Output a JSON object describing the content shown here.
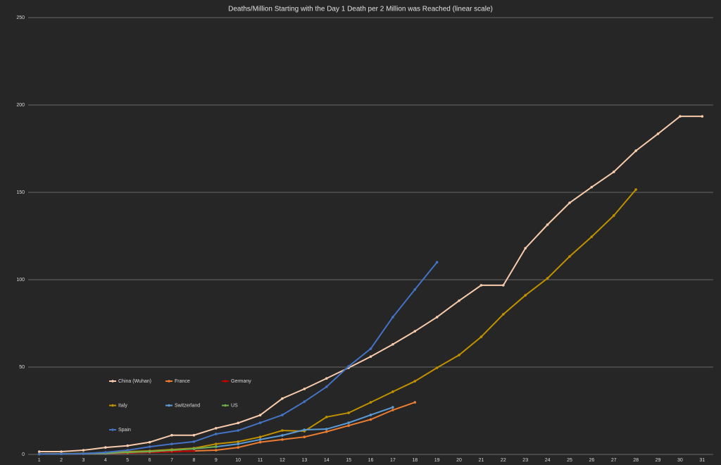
{
  "chart_data": {
    "type": "line",
    "title": "Deaths/Million Starting with the Day 1 Death per 2 Million was Reached (linear scale)",
    "categories": [
      "1",
      "2",
      "3",
      "4",
      "5",
      "6",
      "7",
      "8",
      "9",
      "10",
      "11",
      "12",
      "13",
      "14",
      "15",
      "16",
      "17",
      "18",
      "19",
      "20",
      "21",
      "22",
      "23",
      "24",
      "25",
      "26",
      "27",
      "28",
      "29",
      "30",
      "31"
    ],
    "ylim": [
      0,
      250
    ],
    "yticks": [
      0,
      50,
      100,
      150,
      200,
      250
    ],
    "grid": true,
    "series": [
      {
        "name": "China (Wuhan)",
        "color": "#f8cbad",
        "values": [
          1.6,
          1.6,
          2.4,
          4,
          5,
          7,
          11,
          11,
          15,
          18,
          22.5,
          32,
          37.5,
          43.5,
          49.6,
          56,
          63,
          70.5,
          78.6,
          88,
          96.8,
          96.8,
          118,
          131.5,
          144,
          153,
          161.7,
          173.8,
          183.5,
          193.5,
          193.5
        ]
      },
      {
        "name": "France",
        "color": "#ed7d31",
        "values": [
          0.2,
          0.3,
          0.4,
          0.5,
          0.8,
          1.2,
          1.6,
          2,
          2.4,
          4,
          7,
          8.5,
          10,
          13,
          16.5,
          20,
          25.4,
          29.8,
          null,
          null,
          null,
          null,
          null,
          null,
          null,
          null,
          null,
          null,
          null,
          null,
          null
        ]
      },
      {
        "name": "Germany",
        "color": "#c00000",
        "values": [
          0.2,
          0.3,
          0.4,
          0.6,
          0.9,
          1.2,
          1.6,
          2,
          null,
          null,
          null,
          null,
          null,
          null,
          null,
          null,
          null,
          null,
          null,
          null,
          null,
          null,
          null,
          null,
          null,
          null,
          null,
          null,
          null,
          null,
          null
        ]
      },
      {
        "name": "Italy",
        "color": "#bf9000",
        "values": [
          0.3,
          0.4,
          0.6,
          0.9,
          1.6,
          2,
          2.8,
          3.6,
          6,
          7.3,
          10,
          13.7,
          13.3,
          21.4,
          23.8,
          29.8,
          35.9,
          41.9,
          49.6,
          56.9,
          67.3,
          80.2,
          91.1,
          100.8,
          113.3,
          124.6,
          136.7,
          151.6,
          null,
          null,
          null
        ]
      },
      {
        "name": "Switzerland",
        "color": "#5b9bd5",
        "values": [
          0.2,
          0.3,
          0.4,
          0.6,
          1.2,
          1.6,
          2.4,
          3.2,
          4.4,
          6,
          8.5,
          10.9,
          14.1,
          14.5,
          18.1,
          22.6,
          27,
          null,
          null,
          null,
          null,
          null,
          null,
          null,
          null,
          null,
          null,
          null,
          null,
          null,
          null
        ]
      },
      {
        "name": "US",
        "color": "#70ad47",
        "values": [
          0.2,
          0.3,
          0.5,
          0.8,
          1.2,
          1.6,
          2.4,
          3.3,
          4.5,
          null,
          null,
          null,
          null,
          null,
          null,
          null,
          null,
          null,
          null,
          null,
          null,
          null,
          null,
          null,
          null,
          null,
          null,
          null,
          null,
          null,
          null
        ]
      },
      {
        "name": "Spain",
        "color": "#4472c4",
        "values": [
          0.2,
          0.3,
          0.5,
          1.2,
          2.4,
          4.4,
          6,
          7.3,
          11.7,
          13.7,
          18.1,
          22.6,
          30.2,
          38.7,
          50.4,
          60.5,
          78.6,
          94.4,
          110,
          null,
          null,
          null,
          null,
          null,
          null,
          null,
          null,
          null,
          null,
          null,
          null
        ]
      }
    ]
  }
}
